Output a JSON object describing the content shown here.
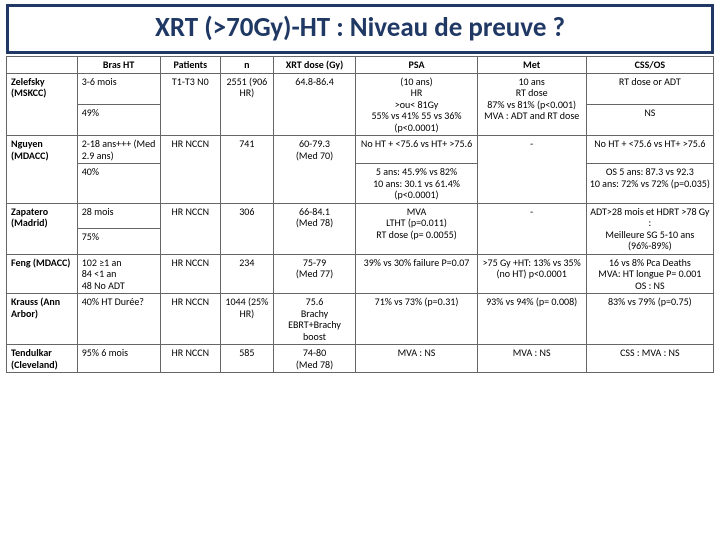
{
  "title": "XRT (>70Gy)-HT : Niveau de preuve ?",
  "columns": [
    "",
    "Bras HT",
    "Patients",
    "n",
    "XRT dose (Gy)",
    "PSA",
    "Met",
    "CSS/OS"
  ],
  "rows": [
    {
      "study": "Zelefsky (MSKCC)",
      "bras": "3-6 mois",
      "patients": "T1-T3 N0",
      "n": "2551 (906 HR)",
      "dose": "64.8-86.4",
      "psa": "(10 ans)\nHR\n>ou< 81Gy\n55% vs 41% 55 vs 36% (p<0.0001)",
      "met": "10 ans\nRT dose\n87% vs 81% (p<0.001)\nMVA : ADT and RT dose",
      "css": "RT dose or ADT"
    },
    {
      "bras": "49%",
      "css": "NS"
    },
    {
      "study": "Nguyen (MDACC)",
      "bras": "2-18 ans+++ (Med 2.9 ans)",
      "patients": "HR NCCN",
      "n": "741",
      "dose": "60-79.3\n(Med 70)",
      "psa": "No HT + <75.6 vs HT+ >75.6",
      "met": "-",
      "css": "No HT + <75.6 vs HT+ >75.6"
    },
    {
      "bras": "40%",
      "psa": "5 ans: 45.9% vs 82%\n10 ans: 30.1 vs 61.4%\n(p<0.0001)",
      "css": "OS 5 ans: 87.3 vs 92.3\n10 ans: 72% vs 72% (p=0.035)"
    },
    {
      "study": "Zapatero (Madrid)",
      "bras": "28 mois",
      "patients": "HR NCCN",
      "n": "306",
      "dose": "66-84.1\n(Med 78)",
      "psa": "MVA\nLTHT (p=0.011)\nRT dose (p= 0.0055)",
      "met": "-",
      "css": "ADT>28 mois et HDRT >78 Gy :\nMeilleure SG 5-10 ans (96%-89%)"
    },
    {
      "bras": "75%"
    },
    {
      "study": "Feng (MDACC)",
      "bras": "102 ≥1 an\n84 <1 an\n48 No ADT",
      "patients": "HR NCCN",
      "n": "234",
      "dose": "75-79\n(Med 77)",
      "psa": "39% vs 30% failure P=0.07",
      "met": ">75 Gy +HT: 13% vs 35%(no HT) p<0.0001",
      "css": "16 vs 8% Pca Deaths\nMVA: HT longue P= 0.001\nOS : NS"
    },
    {
      "study": "Krauss (Ann Arbor)",
      "bras": "40% HT Durée?",
      "patients": "HR NCCN",
      "n": "1044 (25% HR)",
      "dose": "75.6\nBrachy EBRT+Brachy boost",
      "psa": "71% vs 73% (p=0.31)",
      "met": "93% vs 94% (p= 0.008)",
      "css": "83% vs 79% (p=0.75)"
    },
    {
      "study": "Tendulkar (Cleveland)",
      "bras": "95% 6 mois",
      "patients": "HR NCCN",
      "n": "585",
      "dose": "74-80\n(Med 78)",
      "psa": "MVA : NS",
      "met": "MVA : NS",
      "css": "CSS : MVA : NS"
    }
  ]
}
